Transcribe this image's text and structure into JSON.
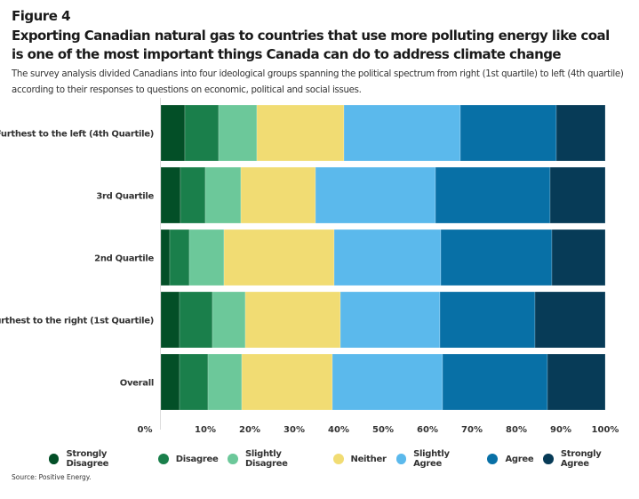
{
  "figure_label": "Figure 4",
  "title": "Exporting Canadian natural gas to countries that use more polluting energy like coal is one of the most important things Canada can do to address climate change",
  "subtitle": "The survey analysis divided Canadians into four ideological groups spanning the political spectrum from right (1st quartile) to left (4th quartile) according to their responses to questions on economic, political and social issues.",
  "source": "Source: Positive Energy.",
  "chart_data": {
    "type": "bar",
    "orientation": "horizontal",
    "stacked": true,
    "title": "Exporting Canadian natural gas to countries that use more polluting energy like coal is one of the most important things Canada can do to address climate change",
    "xlabel": "",
    "ylabel": "",
    "xlim": [
      0,
      100
    ],
    "x_ticks": [
      "0%",
      "10%",
      "20%",
      "30%",
      "40%",
      "50%",
      "60%",
      "70%",
      "80%",
      "90%",
      "100%"
    ],
    "legend_position": "bottom",
    "categories": [
      "Furthest to the left (4th Quartile)",
      "3rd Quartile",
      "2nd Quartile",
      "Furthest to the right (1st Quartile)",
      "Overall"
    ],
    "series": [
      {
        "name": "Strongly Disagree",
        "color": "#034f27",
        "values": [
          5.4,
          4.4,
          2.0,
          4.2,
          4.2
        ]
      },
      {
        "name": "Disagree",
        "color": "#1a7f4b",
        "values": [
          7.6,
          5.6,
          4.4,
          7.4,
          6.4
        ]
      },
      {
        "name": "Slightly Disagree",
        "color": "#6cc89a",
        "values": [
          8.6,
          8.0,
          7.8,
          7.4,
          7.6
        ]
      },
      {
        "name": "Neither",
        "color": "#f1dc73",
        "values": [
          19.6,
          16.8,
          24.8,
          21.4,
          20.4
        ]
      },
      {
        "name": "Slightly Agree",
        "color": "#5bb9ec",
        "values": [
          26.2,
          27.0,
          24.0,
          22.4,
          24.8
        ]
      },
      {
        "name": "Agree",
        "color": "#0870a6",
        "values": [
          21.6,
          25.8,
          25.0,
          21.4,
          23.6
        ]
      },
      {
        "name": "Strongly Agree",
        "color": "#073b57",
        "values": [
          11.0,
          12.4,
          12.0,
          15.8,
          13.0
        ]
      }
    ]
  }
}
